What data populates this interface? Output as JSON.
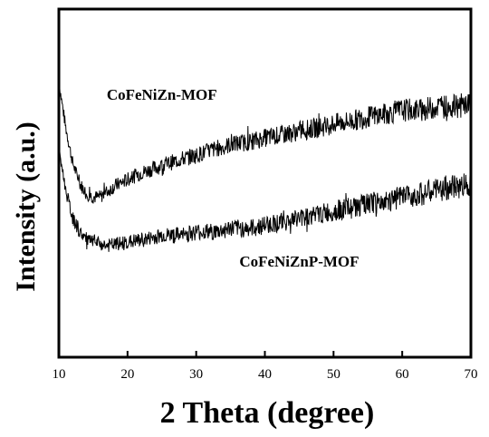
{
  "chart_data": {
    "type": "line",
    "title": "",
    "xlabel": "2 Theta (degree)",
    "ylabel": "Intensity (a.u.)",
    "xlim": [
      10,
      70
    ],
    "xticks": [
      10,
      20,
      30,
      40,
      50,
      60,
      70
    ],
    "x_tick_labels": [
      "10",
      "20",
      "30",
      "40",
      "50",
      "60",
      "70"
    ],
    "y_ticks_shown": false,
    "grid": false,
    "legend": "none",
    "series": [
      {
        "name": "CoFeNiZn-MOF",
        "color": "#000000",
        "x": [
          10,
          11,
          12,
          13,
          14,
          15,
          16,
          18,
          20,
          22,
          25,
          28,
          30,
          33,
          35,
          38,
          40,
          43,
          45,
          48,
          50,
          53,
          55,
          58,
          60,
          63,
          65,
          68,
          70
        ],
        "y": [
          0.79,
          0.66,
          0.56,
          0.5,
          0.47,
          0.46,
          0.46,
          0.49,
          0.51,
          0.53,
          0.55,
          0.57,
          0.58,
          0.6,
          0.61,
          0.62,
          0.63,
          0.64,
          0.65,
          0.66,
          0.67,
          0.68,
          0.69,
          0.7,
          0.71,
          0.71,
          0.72,
          0.72,
          0.73
        ]
      },
      {
        "name": "CoFeNiZnP-MOF",
        "color": "#000000",
        "x": [
          10,
          11,
          12,
          13,
          14,
          15,
          17,
          20,
          23,
          25,
          28,
          30,
          33,
          35,
          38,
          40,
          43,
          45,
          48,
          50,
          53,
          55,
          58,
          60,
          63,
          65,
          68,
          70
        ],
        "y": [
          0.6,
          0.48,
          0.4,
          0.36,
          0.34,
          0.33,
          0.32,
          0.33,
          0.34,
          0.35,
          0.35,
          0.36,
          0.36,
          0.37,
          0.37,
          0.38,
          0.39,
          0.4,
          0.41,
          0.42,
          0.43,
          0.44,
          0.45,
          0.46,
          0.47,
          0.48,
          0.49,
          0.5
        ]
      }
    ],
    "annotations": [
      {
        "text": "CoFeNiZn-MOF",
        "x": 25,
        "y": 0.74
      },
      {
        "text": "CoFeNiZnP-MOF",
        "x": 45,
        "y": 0.26
      }
    ]
  }
}
